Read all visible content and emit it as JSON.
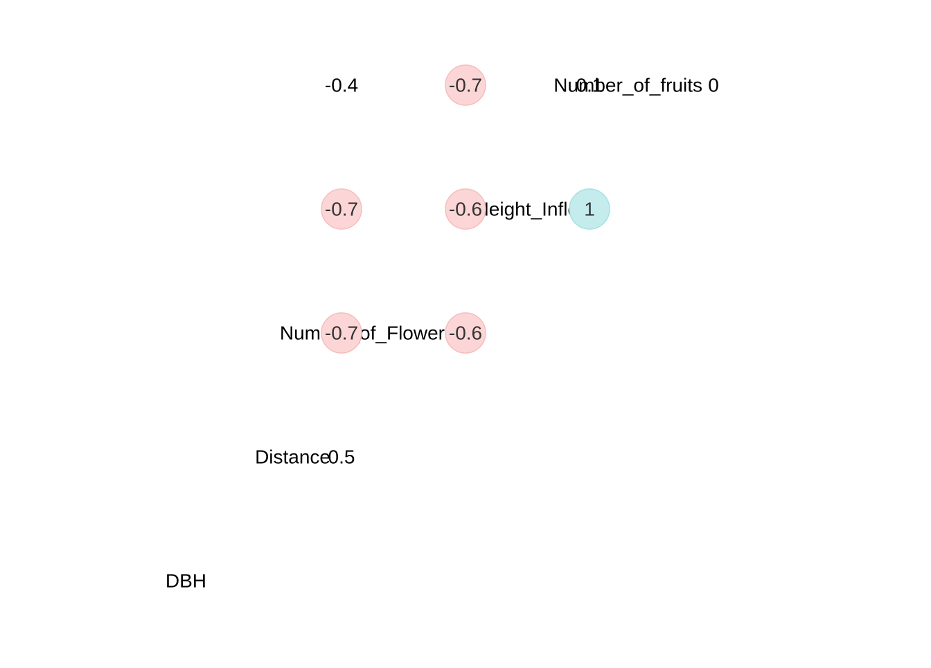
{
  "chart_data": {
    "type": "heatmap",
    "variables": [
      "DBH",
      "Distance",
      "Number_of_Flowers",
      "Height_Inflo",
      "Number_of_fruits"
    ],
    "cells": [
      {
        "row": "Distance",
        "col": "DBH",
        "value": 0.5,
        "label": "0.5"
      },
      {
        "row": "Number_of_Flowers",
        "col": "DBH",
        "value": -0.7,
        "label": "-0.7"
      },
      {
        "row": "Number_of_Flowers",
        "col": "Distance",
        "value": -0.6,
        "label": "-0.6"
      },
      {
        "row": "Height_Inflo",
        "col": "DBH",
        "value": -0.7,
        "label": "-0.7"
      },
      {
        "row": "Height_Inflo",
        "col": "Distance",
        "value": -0.6,
        "label": "-0.6"
      },
      {
        "row": "Height_Inflo",
        "col": "Number_of_Flowers",
        "value": 1,
        "label": "1"
      },
      {
        "row": "Number_of_fruits",
        "col": "DBH",
        "value": -0.4,
        "label": "-0.4"
      },
      {
        "row": "Number_of_fruits",
        "col": "Distance",
        "value": -0.7,
        "label": "-0.7"
      },
      {
        "row": "Number_of_fruits",
        "col": "Number_of_Flowers",
        "value": 0.1,
        "label": "0.1"
      },
      {
        "row": "Number_of_fruits",
        "col": "Height_Inflo",
        "value": 0,
        "label": "0"
      }
    ],
    "highlight_threshold": 0.5,
    "colors": {
      "positive_fill": "#c4ecec",
      "positive_stroke": "#a6e0e0",
      "negative_fill": "#fcd6d6",
      "negative_stroke": "#f6bcbc",
      "text": "#000000",
      "text_on_highlight": "#333333"
    }
  }
}
